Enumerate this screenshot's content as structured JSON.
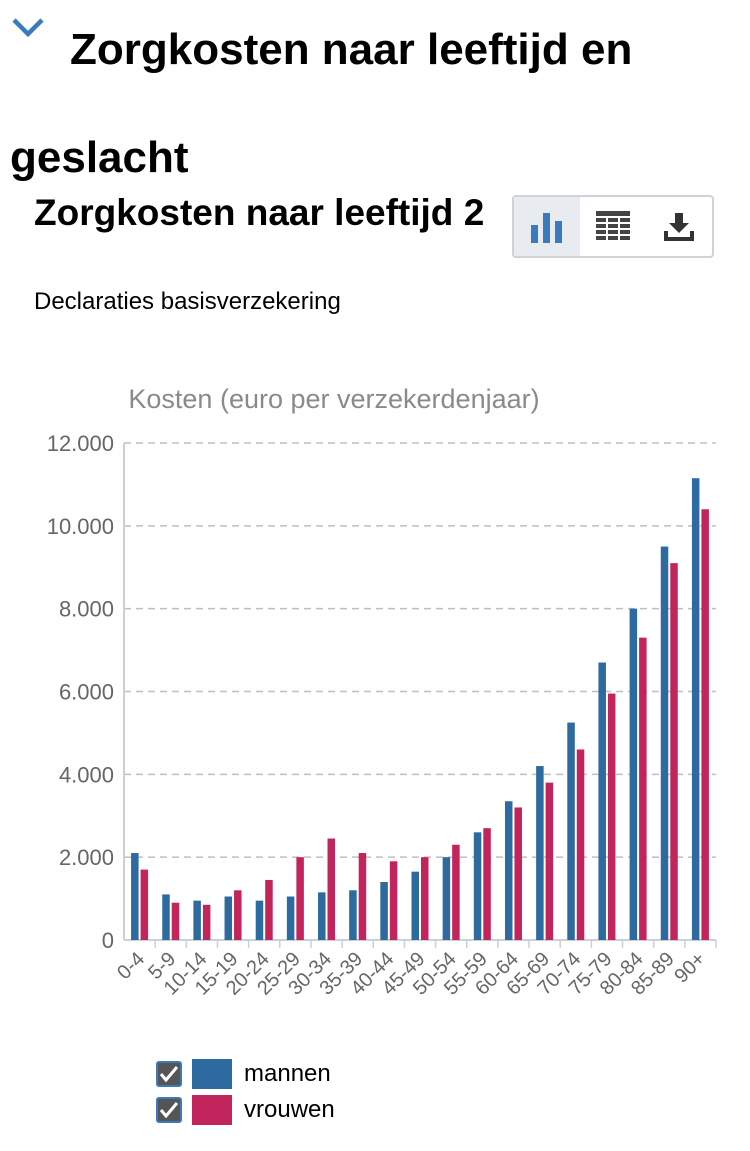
{
  "section": {
    "title": "Zorgkosten naar leeftijd en geslacht"
  },
  "chart_header": {
    "title": "Zorgkosten naar leeftijd 2",
    "subtitle": "Declaraties basisverzekering"
  },
  "toolbar": {
    "buttons": [
      {
        "icon": "bar-chart-icon",
        "active": true
      },
      {
        "icon": "table-icon",
        "active": false
      },
      {
        "icon": "download-icon",
        "active": false
      }
    ]
  },
  "colors": {
    "mannen": "#2d6a9f",
    "vrouwen": "#c2255c",
    "accent": "#3a7abf"
  },
  "chart_data": {
    "type": "bar",
    "ylabel": "Kosten (euro per verzekerdenjaar)",
    "ylim": [
      0,
      12000
    ],
    "yticks": [
      "0",
      "2.000",
      "4.000",
      "6.000",
      "8.000",
      "10.000",
      "12.000"
    ],
    "grid": true,
    "legend_position": "bottom-left",
    "categories": [
      "0-4",
      "5-9",
      "10-14",
      "15-19",
      "20-24",
      "25-29",
      "30-34",
      "35-39",
      "40-44",
      "45-49",
      "50-54",
      "55-59",
      "60-64",
      "65-69",
      "70-74",
      "75-79",
      "80-84",
      "85-89",
      "90+"
    ],
    "series": [
      {
        "name": "mannen",
        "values": [
          2100,
          1100,
          950,
          1050,
          950,
          1050,
          1150,
          1200,
          1400,
          1650,
          2000,
          2600,
          3350,
          4200,
          5250,
          6700,
          8000,
          9500,
          11150
        ]
      },
      {
        "name": "vrouwen",
        "values": [
          1700,
          900,
          850,
          1200,
          1450,
          2000,
          2450,
          2100,
          1900,
          2000,
          2300,
          2700,
          3200,
          3800,
          4600,
          5950,
          7300,
          9100,
          10400
        ]
      }
    ]
  },
  "legend": {
    "items": [
      {
        "label": "mannen",
        "checked": true
      },
      {
        "label": "vrouwen",
        "checked": true
      }
    ]
  }
}
